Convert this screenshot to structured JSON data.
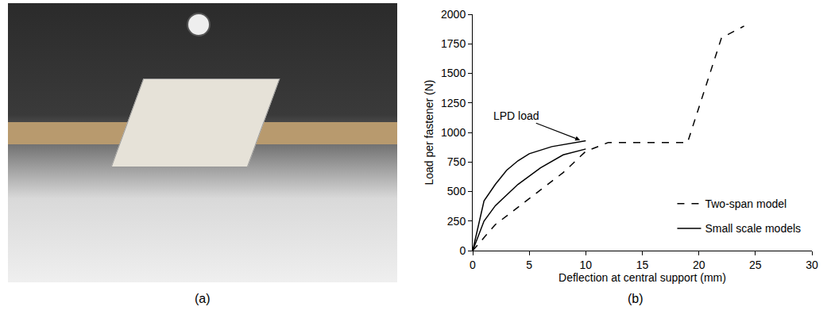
{
  "panel_labels": [
    "(a)",
    "(b)"
  ],
  "chart_data": {
    "type": "line",
    "x_label": "Deflection at central support (mm)",
    "y_label": "Load per fastener (N)",
    "xlim": [
      0,
      30
    ],
    "xticks": [
      0,
      5,
      10,
      15,
      20,
      25,
      30
    ],
    "ylim": [
      0,
      2000
    ],
    "yticks": [
      0,
      250,
      500,
      750,
      1000,
      1250,
      1500,
      1750,
      2000
    ],
    "grid": false,
    "legend": "lower right",
    "series": [
      {
        "name": "Two-span model",
        "color": "#000000",
        "line_style": "dash",
        "x": [
          0,
          2,
          5,
          8,
          10,
          12,
          19,
          22,
          24
        ],
        "values": [
          0,
          220,
          440,
          660,
          840,
          915,
          915,
          1800,
          1900
        ]
      },
      {
        "name": "Small scale models",
        "color": "#000000",
        "line_style": "solid",
        "x": [
          0,
          1,
          2,
          3,
          4,
          5,
          7,
          9,
          10
        ],
        "values": [
          0,
          420,
          560,
          680,
          760,
          820,
          880,
          915,
          930
        ]
      },
      {
        "name": "Small scale models",
        "color": "#000000",
        "line_style": "solid",
        "x": [
          0,
          1,
          2,
          4,
          6,
          8,
          10
        ],
        "values": [
          0,
          250,
          380,
          560,
          700,
          810,
          860
        ]
      }
    ],
    "annotations": [
      {
        "text": "LPD load",
        "x": 9.5,
        "y": 935
      }
    ]
  }
}
